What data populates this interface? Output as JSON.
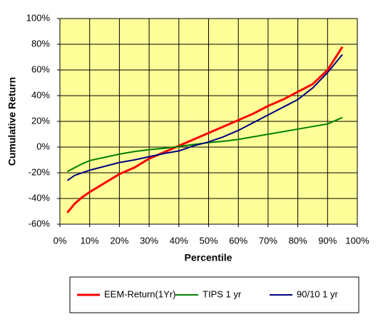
{
  "chart_data": {
    "type": "line",
    "xlabel": "Percentile",
    "ylabel": "Cumulative Return",
    "x": [
      2.5,
      5,
      7.5,
      10,
      15,
      20,
      25,
      30,
      35,
      40,
      45,
      50,
      55,
      60,
      65,
      70,
      75,
      80,
      85,
      90,
      95
    ],
    "series": [
      {
        "name": "EEM-Return(1Yr)",
        "color": "#ff0000",
        "values": [
          -51,
          -44,
          -39,
          -35,
          -28,
          -21,
          -16,
          -9,
          -4,
          1,
          6,
          11,
          16,
          21,
          26,
          32,
          37,
          43,
          49,
          60,
          78
        ]
      },
      {
        "name": "TIPS 1 yr",
        "color": "#008000",
        "values": [
          -19,
          -16,
          -13,
          -10.5,
          -8,
          -5.5,
          -3.5,
          -2,
          -1,
          0.5,
          2,
          3.5,
          4.5,
          6,
          8,
          10,
          12,
          14,
          16,
          18,
          23
        ]
      },
      {
        "name": "90/10 1 yr",
        "color": "#000080",
        "values": [
          -26,
          -22,
          -20,
          -18,
          -15,
          -12,
          -10,
          -7.5,
          -5,
          -3,
          1,
          4,
          8,
          13,
          19,
          25,
          31,
          37,
          46,
          58,
          72
        ]
      }
    ],
    "xlim": [
      0,
      100
    ],
    "xticks": [
      {
        "value": 0,
        "label": "0%"
      },
      {
        "value": 10,
        "label": "10%"
      },
      {
        "value": 20,
        "label": "20%"
      },
      {
        "value": 30,
        "label": "30%"
      },
      {
        "value": 40,
        "label": "40%"
      },
      {
        "value": 50,
        "label": "50%"
      },
      {
        "value": 60,
        "label": "60%"
      },
      {
        "value": 70,
        "label": "70%"
      },
      {
        "value": 80,
        "label": "80%"
      },
      {
        "value": 90,
        "label": "90%"
      },
      {
        "value": 100,
        "label": "100%"
      }
    ],
    "ylim": [
      -60,
      100
    ],
    "yticks": [
      {
        "value": -60,
        "label": "-60%"
      },
      {
        "value": -40,
        "label": "-40%"
      },
      {
        "value": -20,
        "label": "-20%"
      },
      {
        "value": 0,
        "label": "0%"
      },
      {
        "value": 20,
        "label": "20%"
      },
      {
        "value": 40,
        "label": "40%"
      },
      {
        "value": 60,
        "label": "60%"
      },
      {
        "value": 80,
        "label": "80%"
      },
      {
        "value": 100,
        "label": "100%"
      }
    ],
    "grid": true,
    "legend": "bottom",
    "plot_background": "#ffff99"
  }
}
